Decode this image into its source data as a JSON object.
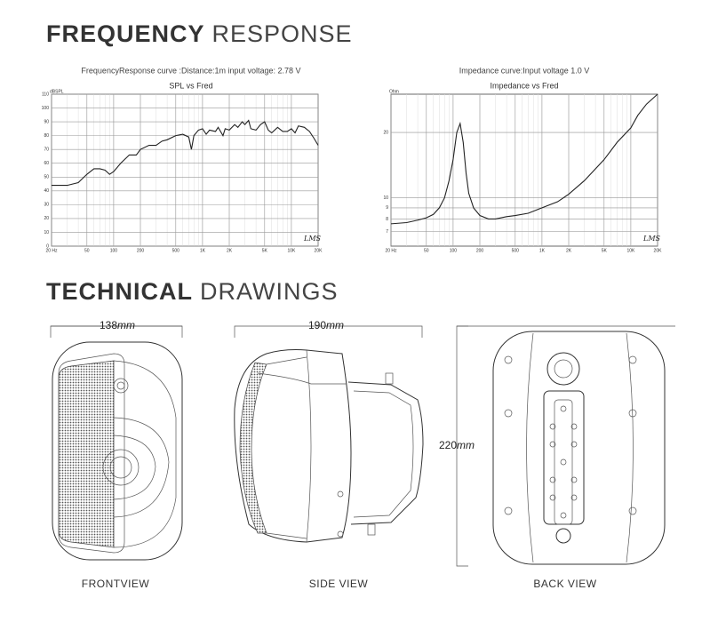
{
  "header": {
    "title_bold": "FREQUENCY",
    "title_light": "RESPONSE"
  },
  "chart_data": [
    {
      "type": "line",
      "caption": "FrequencyResponse curve :Distance:1m input voltage: 2.78 V",
      "title": "SPL  vs  Fred",
      "y_unit": "dBSPL",
      "logo": "LMS",
      "x_log": true,
      "y_log": false,
      "grid": true,
      "xlim": [
        20,
        20000
      ],
      "ylim": [
        0,
        110
      ],
      "xticks": [
        {
          "value": 20,
          "label": "20 Hz"
        },
        50,
        100,
        200,
        500,
        {
          "value": 1000,
          "label": "1K"
        },
        {
          "value": 2000,
          "label": "2K"
        },
        {
          "value": 5000,
          "label": "5K"
        },
        {
          "value": 10000,
          "label": "10K"
        },
        {
          "value": 20000,
          "label": "20K"
        }
      ],
      "yticks": [
        0,
        10,
        20,
        30,
        40,
        50,
        60,
        70,
        80,
        90,
        100,
        110
      ],
      "x": [
        20,
        30,
        40,
        50,
        60,
        70,
        80,
        90,
        100,
        120,
        150,
        180,
        200,
        250,
        300,
        350,
        400,
        500,
        600,
        700,
        750,
        800,
        900,
        1000,
        1100,
        1200,
        1400,
        1500,
        1700,
        1800,
        2000,
        2300,
        2500,
        2800,
        3000,
        3300,
        3500,
        4000,
        4500,
        5000,
        5500,
        6000,
        7000,
        8000,
        9000,
        10000,
        11000,
        12000,
        14000,
        16000,
        18000,
        20000
      ],
      "series": [
        {
          "color": "#222222",
          "values": [
            44,
            44,
            46,
            52,
            56,
            56,
            55,
            52,
            54,
            60,
            66,
            66,
            70,
            73,
            73,
            76,
            77,
            80,
            81,
            79,
            70,
            80,
            84,
            85,
            81,
            84,
            83,
            86,
            80,
            85,
            84,
            88,
            86,
            90,
            88,
            91,
            85,
            84,
            88,
            90,
            84,
            82,
            86,
            83,
            83,
            85,
            82,
            87,
            86,
            83,
            78,
            73
          ]
        }
      ]
    },
    {
      "type": "line",
      "caption": "Impedance curve:Input voltage 1.0 V",
      "title": "Impedance  vs  Fred",
      "y_unit": "Ohm",
      "logo": "LMS",
      "x_log": true,
      "y_log": true,
      "grid": true,
      "xlim": [
        20,
        20000
      ],
      "ylim": [
        6,
        30
      ],
      "xticks": [
        {
          "value": 20,
          "label": "20 Hz"
        },
        50,
        100,
        200,
        500,
        {
          "value": 1000,
          "label": "1K"
        },
        {
          "value": 2000,
          "label": "2K"
        },
        {
          "value": 5000,
          "label": "5K"
        },
        {
          "value": 10000,
          "label": "10K"
        },
        {
          "value": 20000,
          "label": "20K"
        }
      ],
      "yticks": [
        7,
        8,
        9,
        10,
        20
      ],
      "x": [
        20,
        30,
        40,
        50,
        60,
        70,
        80,
        90,
        100,
        110,
        120,
        130,
        140,
        150,
        170,
        200,
        250,
        300,
        400,
        500,
        700,
        1000,
        1500,
        2000,
        3000,
        5000,
        7000,
        10000,
        12000,
        15000,
        20000
      ],
      "series": [
        {
          "color": "#222222",
          "values": [
            7.6,
            7.7,
            7.9,
            8.1,
            8.4,
            9,
            10,
            12,
            15,
            20,
            22,
            18,
            13,
            10.5,
            9,
            8.3,
            8,
            8,
            8.2,
            8.3,
            8.5,
            9,
            9.6,
            10.4,
            12,
            15,
            18,
            21,
            24,
            27,
            30
          ]
        }
      ]
    }
  ],
  "drawings": {
    "title_bold": "TECHNICAL",
    "title_light": "DRAWINGS",
    "unit": "mm",
    "width": "138",
    "depth": "190",
    "height": "220",
    "views": [
      "FRONTVIEW",
      "SIDE VIEW",
      "BACK VIEW"
    ]
  }
}
